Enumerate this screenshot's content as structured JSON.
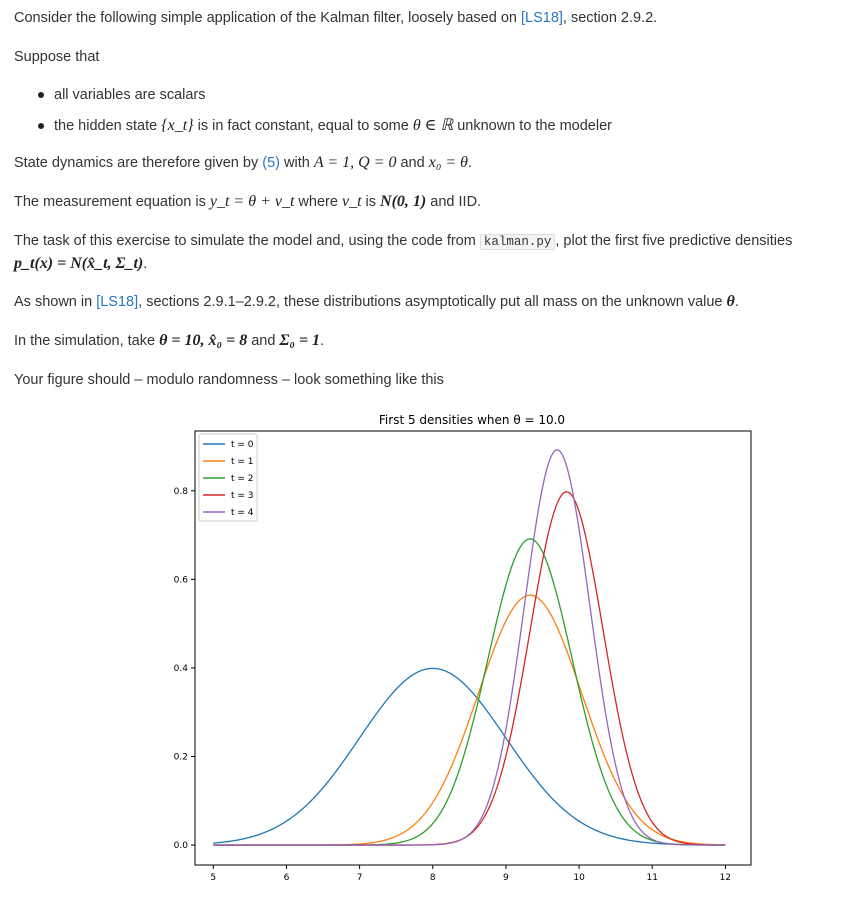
{
  "intro": {
    "text_before": "Consider the following simple application of the Kalman filter, loosely based on ",
    "ref": "[LS18]",
    "text_after": ", section 2.9.2."
  },
  "suppose": "Suppose that",
  "bullets": {
    "b1": "all variables are scalars",
    "b2_before": "the hidden state ",
    "b2_math": "{x_t}",
    "b2_middle": " is in fact constant, equal to some ",
    "b2_math2": "θ ∈ ℝ",
    "b2_after": " unknown to the modeler"
  },
  "dynamics": {
    "before": "State dynamics are therefore given by ",
    "eqref": "(5)",
    "middle": " with ",
    "math": "A = 1, Q = 0",
    "and": " and ",
    "math2": "x₀ = θ",
    "end": "."
  },
  "measurement": {
    "before": "The measurement equation is ",
    "math": "y_t = θ + v_t",
    "middle": " where ",
    "math2": "v_t",
    "is": " is ",
    "math3": "N(0, 1)",
    "after": " and IID."
  },
  "task": {
    "before": "The task of this exercise to simulate the model and, using the code from ",
    "code": "kalman.py",
    "after": ", plot the first five predictive densities",
    "math": "p_t(x) = N(x̂_t, Σ_t)",
    "end": "."
  },
  "asymptotic": {
    "before": "As shown in ",
    "ref": "[LS18]",
    "after": ", sections 2.9.1–2.9.2, these distributions asymptotically put all mass on the unknown value ",
    "math": "θ",
    "end": "."
  },
  "simulation": {
    "before": "In the simulation, take ",
    "math": "θ = 10, x̂₀ = 8",
    "and": " and ",
    "math2": "Σ₀ = 1",
    "end": "."
  },
  "figure_intro": "Your figure should – modulo randomness – look something like this",
  "chart_data": {
    "type": "line",
    "title": "First 5 densities when θ = 10.0",
    "xlim": [
      4.75,
      12.35
    ],
    "ylim": [
      -0.045,
      0.935
    ],
    "xticks": [
      5,
      6,
      7,
      8,
      9,
      10,
      11,
      12
    ],
    "yticks": [
      0.0,
      0.2,
      0.4,
      0.6,
      0.8
    ],
    "xtick_labels": [
      "5",
      "6",
      "7",
      "8",
      "9",
      "10",
      "11",
      "12"
    ],
    "ytick_labels": [
      "0.0",
      "0.2",
      "0.4",
      "0.6",
      "0.8"
    ],
    "x_range": [
      5,
      12
    ],
    "series": [
      {
        "name": "t = 0",
        "color": "#1f77b4",
        "mean": 8.0,
        "sd": 1.0
      },
      {
        "name": "t = 1",
        "color": "#ff7f0e",
        "mean": 9.33,
        "sd": 0.707
      },
      {
        "name": "t = 2",
        "color": "#2ca02c",
        "mean": 9.33,
        "sd": 0.577
      },
      {
        "name": "t = 3",
        "color": "#d62728",
        "mean": 9.83,
        "sd": 0.5
      },
      {
        "name": "t = 4",
        "color": "#9467bd",
        "mean": 9.7,
        "sd": 0.447
      }
    ],
    "legend_position": "top-left",
    "grid": false
  }
}
